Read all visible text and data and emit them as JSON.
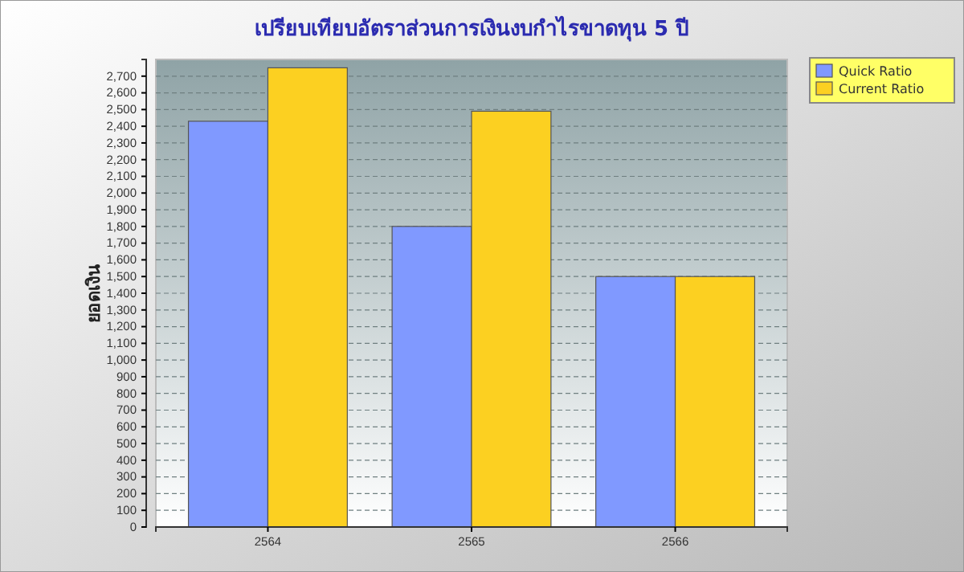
{
  "chart_data": {
    "type": "bar",
    "title": "เปรียบเทียบอัตราส่วนการเงินงบกำไรขาดทุน 5 ปี",
    "ylabel": "ยอดเงิน",
    "categories": [
      "2564",
      "2565",
      "2566"
    ],
    "series": [
      {
        "name": "Quick Ratio",
        "color": "#8099ff",
        "values": [
          2430,
          1800,
          1500
        ]
      },
      {
        "name": "Current Ratio",
        "color": "#fcd021",
        "values": [
          2750,
          2490,
          1500
        ]
      }
    ],
    "ylim": [
      0,
      2800
    ],
    "yticks": [
      {
        "value": 0,
        "label": "0"
      },
      {
        "value": 100,
        "label": "100"
      },
      {
        "value": 200,
        "label": "200"
      },
      {
        "value": 300,
        "label": "300"
      },
      {
        "value": 400,
        "label": "400"
      },
      {
        "value": 500,
        "label": "500"
      },
      {
        "value": 600,
        "label": "600"
      },
      {
        "value": 700,
        "label": "700"
      },
      {
        "value": 800,
        "label": "800"
      },
      {
        "value": 900,
        "label": "900"
      },
      {
        "value": 1000,
        "label": "1,000"
      },
      {
        "value": 1100,
        "label": "1,100"
      },
      {
        "value": 1200,
        "label": "1,200"
      },
      {
        "value": 1300,
        "label": "1,300"
      },
      {
        "value": 1400,
        "label": "1,400"
      },
      {
        "value": 1500,
        "label": "1,500"
      },
      {
        "value": 1600,
        "label": "1,600"
      },
      {
        "value": 1700,
        "label": "1,700"
      },
      {
        "value": 1800,
        "label": "1,800"
      },
      {
        "value": 1900,
        "label": "1,900"
      },
      {
        "value": 2000,
        "label": "2,000"
      },
      {
        "value": 2100,
        "label": "2,100"
      },
      {
        "value": 2200,
        "label": "2,200"
      },
      {
        "value": 2300,
        "label": "2,300"
      },
      {
        "value": 2400,
        "label": "2,400"
      },
      {
        "value": 2500,
        "label": "2,500"
      },
      {
        "value": 2600,
        "label": "2,600"
      },
      {
        "value": 2700,
        "label": "2,700"
      }
    ],
    "grid": "y",
    "legend": "top right"
  }
}
